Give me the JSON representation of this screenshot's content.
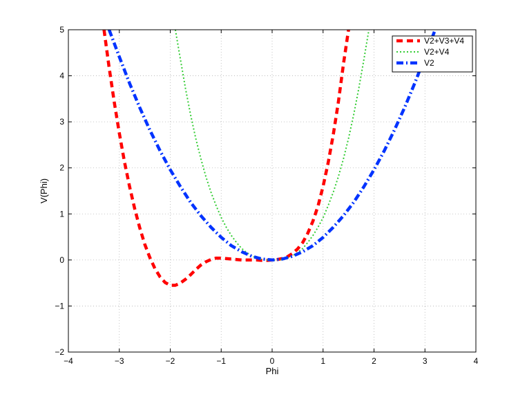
{
  "chart_data": {
    "type": "line",
    "title": "",
    "xlabel": "Phi",
    "ylabel": "V(Phi)",
    "xlim": [
      -4,
      4
    ],
    "ylim": [
      -2,
      5
    ],
    "xticks": [
      -4,
      -3,
      -2,
      -1,
      0,
      1,
      2,
      3,
      4
    ],
    "yticks": [
      -2,
      -1,
      0,
      1,
      2,
      3,
      4,
      5
    ],
    "xtick_labels": [
      "−4",
      "−3",
      "−2",
      "−1",
      "0",
      "1",
      "2",
      "3",
      "4"
    ],
    "ytick_labels": [
      "−2",
      "−1",
      "0",
      "1",
      "2",
      "3",
      "4",
      "5"
    ],
    "grid": true,
    "legend_position": "top-right",
    "series": [
      {
        "name": "V2+V3+V4",
        "color": "#ff0000",
        "style": "dashed",
        "x": [
          -3.3,
          -3.2,
          -3.1,
          -3.0,
          -2.9,
          -2.8,
          -2.7,
          -2.6,
          -2.5,
          -2.4,
          -2.3,
          -2.2,
          -2.1,
          -2.0,
          -1.9,
          -1.8,
          -1.7,
          -1.6,
          -1.5,
          -1.4,
          -1.3,
          -1.2,
          -1.1,
          -1.0,
          -0.9,
          -0.8,
          -0.7,
          -0.6,
          -0.5,
          -0.4,
          -0.3,
          -0.2,
          -0.1,
          0.0,
          0.1,
          0.2,
          0.3,
          0.4,
          0.5,
          0.6,
          0.7,
          0.8,
          0.9,
          1.0,
          1.1,
          1.2,
          1.3,
          1.4,
          1.5
        ],
        "y": [
          5.0,
          4.18,
          3.43,
          2.75,
          2.14,
          1.6,
          1.12,
          0.7,
          0.34,
          0.05,
          -0.19,
          -0.37,
          -0.49,
          -0.55,
          -0.55,
          -0.5,
          -0.42,
          -0.32,
          -0.21,
          -0.11,
          -0.04,
          0.01,
          0.04,
          0.04,
          0.03,
          0.02,
          0.01,
          0.0,
          0.0,
          0.0,
          0.0,
          -0.01,
          -0.01,
          0.0,
          0.01,
          0.03,
          0.07,
          0.14,
          0.24,
          0.38,
          0.58,
          0.84,
          1.17,
          1.6,
          2.11,
          2.72,
          3.43,
          4.26,
          5.0
        ]
      },
      {
        "name": "V2+V4",
        "color": "#33cc33",
        "style": "dotted",
        "x": [
          -1.9,
          -1.8,
          -1.7,
          -1.6,
          -1.5,
          -1.4,
          -1.3,
          -1.2,
          -1.1,
          -1.0,
          -0.9,
          -0.8,
          -0.7,
          -0.6,
          -0.5,
          -0.4,
          -0.3,
          -0.2,
          -0.1,
          0.0,
          0.1,
          0.2,
          0.3,
          0.4,
          0.5,
          0.6,
          0.7,
          0.8,
          0.9,
          1.0,
          1.1,
          1.2,
          1.3,
          1.4,
          1.5,
          1.6,
          1.7,
          1.8,
          1.9
        ],
        "y": [
          5.0,
          4.35,
          3.72,
          3.15,
          2.64,
          2.2,
          1.81,
          1.47,
          1.18,
          0.92,
          0.71,
          0.53,
          0.38,
          0.25,
          0.16,
          0.09,
          0.04,
          0.01,
          0.0,
          0.0,
          0.0,
          0.01,
          0.04,
          0.09,
          0.16,
          0.25,
          0.38,
          0.53,
          0.71,
          0.92,
          1.18,
          1.47,
          1.81,
          2.2,
          2.64,
          3.15,
          3.72,
          4.35,
          5.0
        ]
      },
      {
        "name": "V2",
        "color": "#0033ff",
        "style": "dashdot",
        "x": [
          -3.2,
          -3.0,
          -2.8,
          -2.6,
          -2.4,
          -2.2,
          -2.0,
          -1.8,
          -1.6,
          -1.4,
          -1.2,
          -1.0,
          -0.8,
          -0.6,
          -0.4,
          -0.2,
          0.0,
          0.2,
          0.4,
          0.6,
          0.8,
          1.0,
          1.2,
          1.4,
          1.6,
          1.8,
          2.0,
          2.2,
          2.4,
          2.6,
          2.8,
          3.0,
          3.2
        ],
        "y": [
          5.0,
          4.41,
          3.84,
          3.31,
          2.82,
          2.37,
          1.96,
          1.59,
          1.25,
          0.96,
          0.71,
          0.49,
          0.31,
          0.18,
          0.08,
          0.02,
          0.0,
          0.02,
          0.08,
          0.18,
          0.31,
          0.49,
          0.71,
          0.96,
          1.25,
          1.59,
          1.96,
          2.37,
          2.82,
          3.31,
          3.84,
          4.41,
          5.0
        ]
      }
    ]
  }
}
